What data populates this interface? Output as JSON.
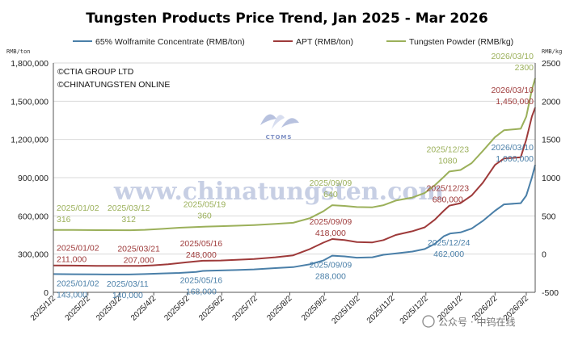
{
  "chart_data": {
    "type": "line",
    "title": "Tungsten Products Price Trend, Jan 2025 - Mar 2026",
    "left_axis": {
      "unit": "RMB/ton",
      "range": [
        0,
        1800000
      ],
      "ticks": [
        0,
        300000,
        600000,
        900000,
        1200000,
        1500000,
        1800000
      ],
      "tick_labels": [
        "0",
        "300,000",
        "600,000",
        "900,000",
        "1,200,000",
        "1,500,000",
        "1,800,000"
      ]
    },
    "right_axis": {
      "unit": "RMB/kg",
      "range": [
        -500,
        2500
      ],
      "ticks": [
        -500,
        0,
        500,
        1000,
        1500,
        2000,
        2500
      ],
      "tick_labels": [
        "-500",
        "0",
        "500",
        "1000",
        "1500",
        "2000",
        "2500"
      ]
    },
    "x_axis": {
      "range": [
        "2025-01-02",
        "2026-03-10"
      ],
      "ticks": [
        "2025-01-02",
        "2025-02-02",
        "2025-03-02",
        "2025-04-02",
        "2025-05-02",
        "2025-06-02",
        "2025-07-02",
        "2025-08-02",
        "2025-09-02",
        "2025-10-02",
        "2025-11-02",
        "2025-12-02",
        "2026-01-02",
        "2026-02-02",
        "2026-03-02"
      ],
      "tick_labels": [
        "2025/1/2",
        "2025/2/2",
        "2025/3/2",
        "2025/4/2",
        "2025/5/2",
        "2025/6/2",
        "2025/7/2",
        "2025/8/2",
        "2025/9/2",
        "2025/10/2",
        "2025/11/2",
        "2025/12/2",
        "2026/1/2",
        "2026/2/2",
        "2026/3/2"
      ]
    },
    "grid": true,
    "legend": "top",
    "notes": [
      "©CTIA GROUP LTD",
      "©CHINATUNGSTEN ONLINE"
    ],
    "watermark": {
      "text": "www.chinatungsten.com",
      "logo_text": "CTOMS"
    },
    "series": [
      {
        "name": "65% Wolframite Concentrate (RMB/ton)",
        "axis": "left",
        "color": "#4a7fa8",
        "points": [
          [
            "2025-01-02",
            143000
          ],
          [
            "2025-01-20",
            142000
          ],
          [
            "2025-02-10",
            141000
          ],
          [
            "2025-03-11",
            140000
          ],
          [
            "2025-03-25",
            143000
          ],
          [
            "2025-04-10",
            148000
          ],
          [
            "2025-04-25",
            152000
          ],
          [
            "2025-05-10",
            160000
          ],
          [
            "2025-05-16",
            168000
          ],
          [
            "2025-06-01",
            172000
          ],
          [
            "2025-06-15",
            175000
          ],
          [
            "2025-07-01",
            180000
          ],
          [
            "2025-07-20",
            190000
          ],
          [
            "2025-08-05",
            198000
          ],
          [
            "2025-08-20",
            220000
          ],
          [
            "2025-09-01",
            250000
          ],
          [
            "2025-09-09",
            288000
          ],
          [
            "2025-09-20",
            282000
          ],
          [
            "2025-10-01",
            272000
          ],
          [
            "2025-10-15",
            275000
          ],
          [
            "2025-10-25",
            295000
          ],
          [
            "2025-11-05",
            305000
          ],
          [
            "2025-11-20",
            320000
          ],
          [
            "2025-12-01",
            340000
          ],
          [
            "2025-12-10",
            380000
          ],
          [
            "2025-12-18",
            440000
          ],
          [
            "2025-12-24",
            462000
          ],
          [
            "2026-01-02",
            470000
          ],
          [
            "2026-01-12",
            500000
          ],
          [
            "2026-01-22",
            560000
          ],
          [
            "2026-02-02",
            640000
          ],
          [
            "2026-02-10",
            690000
          ],
          [
            "2026-02-25",
            700000
          ],
          [
            "2026-03-02",
            760000
          ],
          [
            "2026-03-07",
            900000
          ],
          [
            "2026-03-10",
            1000000
          ]
        ]
      },
      {
        "name": "APT (RMB/ton)",
        "axis": "left",
        "color": "#9e3a3a",
        "points": [
          [
            "2025-01-02",
            211000
          ],
          [
            "2025-01-20",
            210000
          ],
          [
            "2025-02-10",
            208000
          ],
          [
            "2025-03-21",
            207000
          ],
          [
            "2025-04-01",
            212000
          ],
          [
            "2025-04-15",
            220000
          ],
          [
            "2025-05-01",
            235000
          ],
          [
            "2025-05-16",
            248000
          ],
          [
            "2025-06-01",
            250000
          ],
          [
            "2025-06-15",
            255000
          ],
          [
            "2025-07-01",
            262000
          ],
          [
            "2025-07-20",
            275000
          ],
          [
            "2025-08-05",
            290000
          ],
          [
            "2025-08-20",
            340000
          ],
          [
            "2025-09-01",
            390000
          ],
          [
            "2025-09-09",
            418000
          ],
          [
            "2025-09-20",
            410000
          ],
          [
            "2025-10-01",
            395000
          ],
          [
            "2025-10-15",
            392000
          ],
          [
            "2025-10-25",
            410000
          ],
          [
            "2025-11-05",
            450000
          ],
          [
            "2025-11-20",
            480000
          ],
          [
            "2025-12-01",
            510000
          ],
          [
            "2025-12-10",
            570000
          ],
          [
            "2025-12-18",
            640000
          ],
          [
            "2025-12-23",
            680000
          ],
          [
            "2026-01-02",
            700000
          ],
          [
            "2026-01-12",
            760000
          ],
          [
            "2026-01-22",
            860000
          ],
          [
            "2026-02-02",
            1000000
          ],
          [
            "2026-02-10",
            1050000
          ],
          [
            "2026-02-25",
            1060000
          ],
          [
            "2026-03-02",
            1200000
          ],
          [
            "2026-03-07",
            1380000
          ],
          [
            "2026-03-10",
            1450000
          ]
        ]
      },
      {
        "name": "Tungsten Powder (RMB/kg)",
        "axis": "right",
        "color": "#9bb05a",
        "points": [
          [
            "2025-01-02",
            316
          ],
          [
            "2025-01-20",
            315
          ],
          [
            "2025-02-10",
            313
          ],
          [
            "2025-03-12",
            312
          ],
          [
            "2025-03-25",
            318
          ],
          [
            "2025-04-10",
            330
          ],
          [
            "2025-04-25",
            345
          ],
          [
            "2025-05-19",
            360
          ],
          [
            "2025-06-01",
            365
          ],
          [
            "2025-06-15",
            372
          ],
          [
            "2025-07-01",
            380
          ],
          [
            "2025-07-20",
            395
          ],
          [
            "2025-08-05",
            410
          ],
          [
            "2025-08-20",
            470
          ],
          [
            "2025-09-01",
            560
          ],
          [
            "2025-09-09",
            640
          ],
          [
            "2025-09-20",
            630
          ],
          [
            "2025-10-01",
            615
          ],
          [
            "2025-10-15",
            612
          ],
          [
            "2025-10-25",
            640
          ],
          [
            "2025-11-05",
            700
          ],
          [
            "2025-11-20",
            740
          ],
          [
            "2025-12-01",
            800
          ],
          [
            "2025-12-10",
            900
          ],
          [
            "2025-12-18",
            1010
          ],
          [
            "2025-12-23",
            1080
          ],
          [
            "2026-01-02",
            1100
          ],
          [
            "2026-01-12",
            1190
          ],
          [
            "2026-01-22",
            1350
          ],
          [
            "2026-02-02",
            1530
          ],
          [
            "2026-02-10",
            1620
          ],
          [
            "2026-02-25",
            1640
          ],
          [
            "2026-03-02",
            1800
          ],
          [
            "2026-03-07",
            2150
          ],
          [
            "2026-03-10",
            2300
          ]
        ]
      }
    ],
    "annotations": [
      {
        "series": 0,
        "date": "2025/01/02",
        "value": "143,000"
      },
      {
        "series": 0,
        "date": "2025/03/11",
        "value": "140,000"
      },
      {
        "series": 0,
        "date": "2025/05/16",
        "value": "168,000"
      },
      {
        "series": 0,
        "date": "2025/09/09",
        "value": "288,000"
      },
      {
        "series": 0,
        "date": "2025/12/24",
        "value": "462,000"
      },
      {
        "series": 0,
        "date": "2026/03/10",
        "value": "1,000,000"
      },
      {
        "series": 1,
        "date": "2025/01/02",
        "value": "211,000"
      },
      {
        "series": 1,
        "date": "2025/03/21",
        "value": "207,000"
      },
      {
        "series": 1,
        "date": "2025/05/16",
        "value": "248,000"
      },
      {
        "series": 1,
        "date": "2025/09/09",
        "value": "418,000"
      },
      {
        "series": 1,
        "date": "2025/12/23",
        "value": "680,000"
      },
      {
        "series": 1,
        "date": "2026/03/10",
        "value": "1,450,000"
      },
      {
        "series": 2,
        "date": "2025/01/02",
        "value": "316"
      },
      {
        "series": 2,
        "date": "2025/03/12",
        "value": "312"
      },
      {
        "series": 2,
        "date": "2025/05/19",
        "value": "360"
      },
      {
        "series": 2,
        "date": "2025/09/09",
        "value": "640"
      },
      {
        "series": 2,
        "date": "2025/12/23",
        "value": "1080"
      },
      {
        "series": 2,
        "date": "2026/03/10",
        "value": "2300"
      }
    ]
  },
  "wechat_badge": "公众号 · 中钨在线"
}
